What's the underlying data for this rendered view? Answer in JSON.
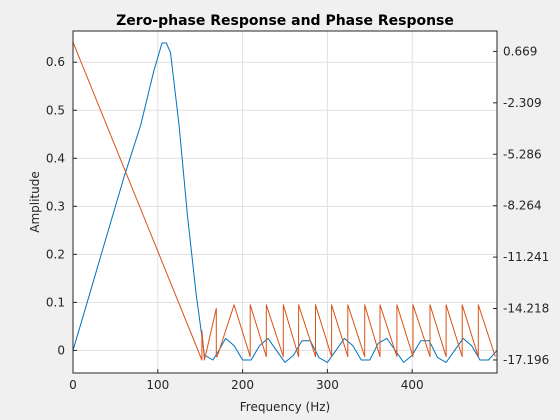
{
  "chart_data": {
    "type": "line",
    "title": "Zero-phase Response and Phase Response",
    "xlabel": "Frequency (Hz)",
    "ylabel": "Amplitude",
    "xlim": [
      0,
      500
    ],
    "ylim_left": [
      -0.047,
      0.665
    ],
    "ylim_right": [
      -17.95,
      1.85
    ],
    "x_ticks": [
      0,
      100,
      200,
      300,
      400
    ],
    "x_tick_labels": [
      "0",
      "100",
      "200",
      "300",
      "400"
    ],
    "y_left_ticks": [
      0,
      0.1,
      0.2,
      0.3,
      0.4,
      0.5,
      0.6
    ],
    "y_left_tick_labels": [
      "0",
      "0.1",
      "0.2",
      "0.3",
      "0.4",
      "0.5",
      "0.6"
    ],
    "y_right_ticks": [
      0.669,
      -2.309,
      -5.286,
      -8.264,
      -11.241,
      -14.218,
      -17.196
    ],
    "y_right_tick_labels": [
      "0.669",
      "-2.309",
      "-5.286",
      "-8.264",
      "-11.241",
      "-14.218",
      "-17.196"
    ],
    "grid": true,
    "series": [
      {
        "axis": "left",
        "color": "#0072bd",
        "x": [
          0,
          20,
          40,
          60,
          80,
          95,
          105,
          110,
          115,
          125,
          135,
          145,
          155,
          165,
          172,
          180,
          190,
          200,
          210,
          220,
          230,
          240,
          250,
          260,
          270,
          280,
          290,
          300,
          310,
          320,
          330,
          340,
          350,
          360,
          370,
          380,
          390,
          400,
          410,
          420,
          430,
          440,
          450,
          460,
          470,
          480,
          490,
          500
        ],
        "values": [
          0,
          0.12,
          0.24,
          0.36,
          0.47,
          0.58,
          0.64,
          0.64,
          0.62,
          0.47,
          0.28,
          0.12,
          -0.01,
          -0.02,
          0.0,
          0.025,
          0.01,
          -0.02,
          -0.02,
          0.01,
          0.025,
          0.0,
          -0.025,
          -0.01,
          0.02,
          0.02,
          -0.015,
          -0.025,
          0.0,
          0.025,
          0.01,
          -0.02,
          -0.02,
          0.015,
          0.025,
          0.0,
          -0.025,
          -0.01,
          0.02,
          0.02,
          -0.015,
          -0.025,
          0.0,
          0.025,
          0.01,
          -0.02,
          -0.02,
          0.0
        ]
      },
      {
        "axis": "right",
        "color": "#d95319",
        "x": [
          0,
          152,
          152,
          155,
          157,
          169,
          169,
          170,
          190,
          190,
          209,
          209,
          228,
          228,
          248,
          248,
          266,
          266,
          286,
          286,
          305,
          305,
          324,
          324,
          344,
          344,
          362,
          362,
          382,
          382,
          401,
          401,
          421,
          421,
          440,
          440,
          459,
          459,
          478,
          478,
          498
        ],
        "values": [
          1.2,
          -17.2,
          -15.5,
          -17.2,
          -16.8,
          -14.2,
          -17.0,
          -17.0,
          -14.0,
          -14.0,
          -17.0,
          -14.0,
          -17.0,
          -14.0,
          -17.0,
          -14.0,
          -17.0,
          -14.0,
          -17.0,
          -14.0,
          -17.0,
          -14.0,
          -17.0,
          -14.0,
          -17.0,
          -14.0,
          -17.0,
          -14.0,
          -17.0,
          -14.0,
          -17.0,
          -14.0,
          -17.0,
          -14.0,
          -17.0,
          -14.0,
          -17.0,
          -14.0,
          -17.0,
          -14.0,
          -17.0
        ]
      }
    ]
  }
}
